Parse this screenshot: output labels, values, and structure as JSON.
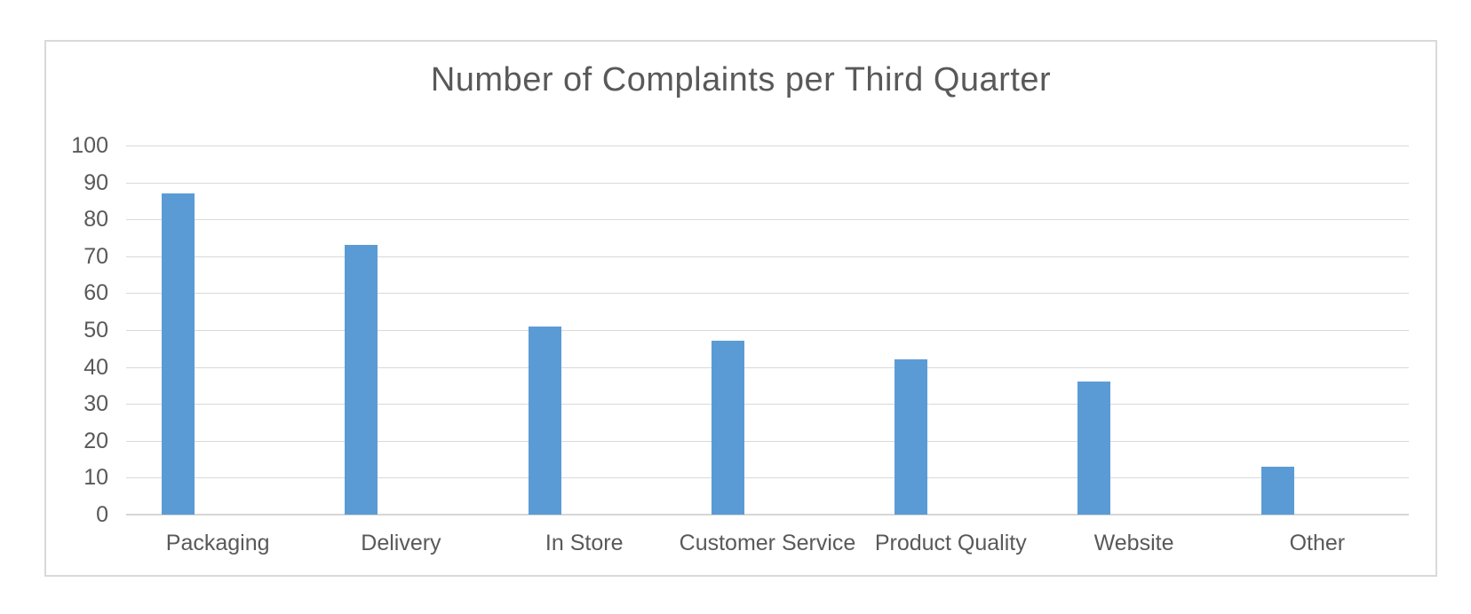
{
  "chart_data": {
    "type": "bar",
    "title": "Number of Complaints per Third Quarter",
    "categories": [
      "Packaging",
      "Delivery",
      "In Store",
      "Customer Service",
      "Product Quality",
      "Website",
      "Other"
    ],
    "values": [
      87,
      73,
      51,
      47,
      42,
      36,
      13
    ],
    "xlabel": "",
    "ylabel": "",
    "ylim": [
      0,
      100
    ],
    "yticks": [
      0,
      10,
      20,
      30,
      40,
      50,
      60,
      70,
      80,
      90,
      100
    ],
    "grid": "horizontal",
    "legend": "none",
    "colors": {
      "bar": "#5b9bd5",
      "gridline": "#d9d9d9",
      "axis_line": "#d6d6d6",
      "text": "#595959",
      "chart_border": "#d9d9d9",
      "background": "#ffffff"
    }
  }
}
